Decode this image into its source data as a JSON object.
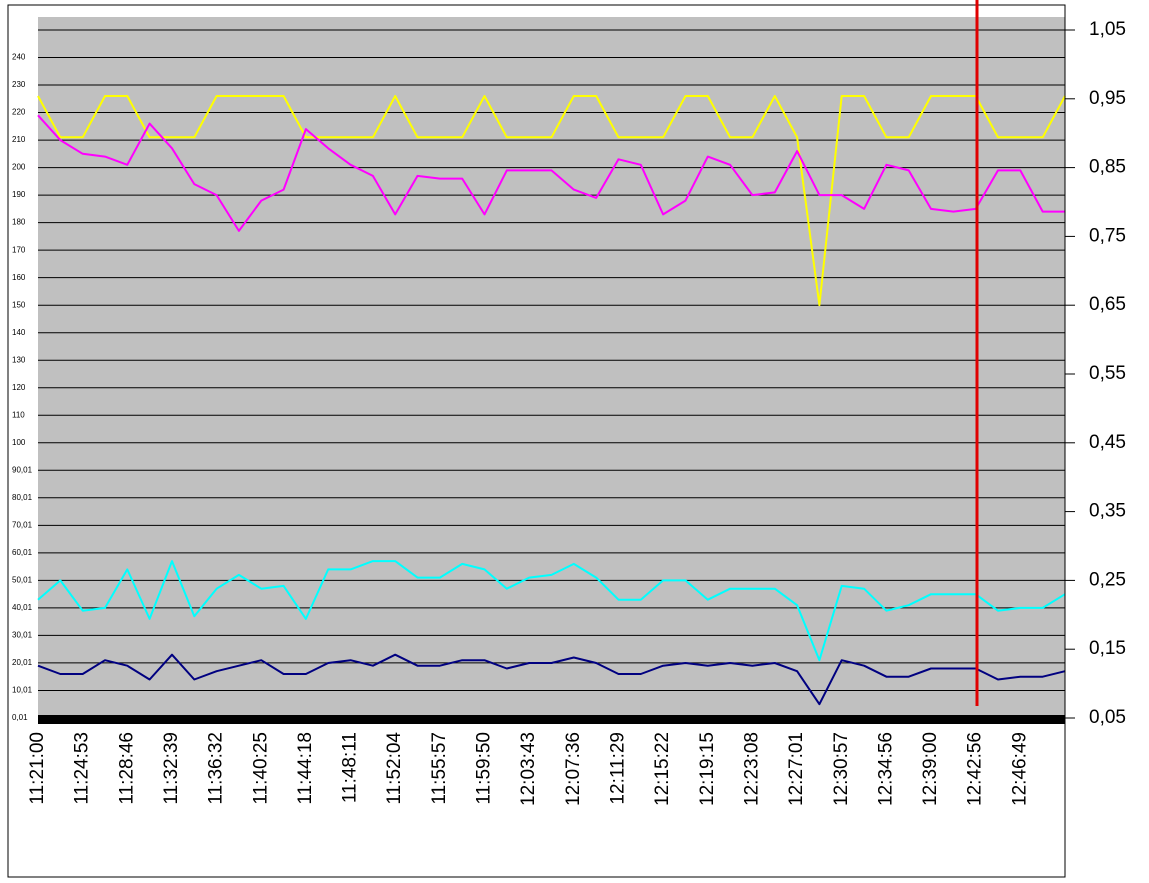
{
  "chart_data": {
    "type": "line",
    "categories": [
      "11:21:00",
      null,
      "11:24:53",
      null,
      "11:28:46",
      null,
      "11:32:39",
      null,
      "11:36:32",
      null,
      "11:40:25",
      null,
      "11:44:18",
      null,
      "11:48:11",
      null,
      "11:52:04",
      null,
      "11:55:57",
      null,
      "11:59:50",
      null,
      "12:03:43",
      null,
      "12:07:36",
      null,
      "12:11:29",
      null,
      "12:15:22",
      null,
      "12:19:15",
      null,
      "12:23:08",
      null,
      "12:27:01",
      null,
      "12:30:57",
      null,
      "12:34:56",
      null,
      "12:39:00",
      null,
      "12:42:56",
      null,
      "12:46:49",
      null,
      null
    ],
    "series": [
      {
        "color": "#ffff00",
        "values": [
          226,
          211,
          211,
          226,
          226,
          211,
          211,
          211,
          226,
          226,
          226,
          226,
          211,
          211,
          211,
          211,
          226,
          211,
          211,
          211,
          226,
          211,
          211,
          211,
          226,
          226,
          211,
          211,
          211,
          226,
          226,
          211,
          211,
          226,
          211,
          150,
          226,
          226,
          211,
          211,
          226,
          226,
          226,
          211,
          211,
          211,
          226
        ]
      },
      {
        "color": "#ff00ff",
        "values": [
          219,
          210,
          205,
          204,
          201,
          216,
          207,
          194,
          190,
          177,
          188,
          192,
          214,
          207,
          201,
          197,
          183,
          197,
          196,
          196,
          183,
          199,
          199,
          199,
          192,
          189,
          203,
          201,
          183,
          188,
          204,
          201,
          190,
          191,
          206,
          190,
          190,
          185,
          201,
          199,
          185,
          184,
          185,
          199,
          199,
          184,
          184
        ]
      },
      {
        "color": "#00ffff",
        "values": [
          43,
          50,
          39,
          40,
          54,
          36,
          57,
          37,
          47,
          52,
          47,
          48,
          36,
          54,
          54,
          57,
          57,
          51,
          51,
          56,
          54,
          47,
          51,
          52,
          56,
          51,
          43,
          43,
          50,
          50,
          43,
          47,
          47,
          47,
          41,
          21,
          48,
          47,
          39,
          41,
          45,
          45,
          45,
          39,
          40,
          40,
          45
        ]
      },
      {
        "color": "#000080",
        "values": [
          19,
          16,
          16,
          21,
          19,
          14,
          23,
          14,
          17,
          19,
          21,
          16,
          16,
          20,
          21,
          19,
          23,
          19,
          19,
          21,
          21,
          18,
          20,
          20,
          22,
          20,
          16,
          16,
          19,
          20,
          19,
          20,
          19,
          20,
          17,
          5,
          21,
          19,
          15,
          15,
          18,
          18,
          18,
          14,
          15,
          15,
          17
        ]
      }
    ],
    "ylim": [
      0,
      250
    ],
    "yticks": [
      {
        "value": 0.01,
        "label": "0,01"
      },
      {
        "value": 10.01,
        "label": "10,01"
      },
      {
        "value": 20.01,
        "label": "20,01"
      },
      {
        "value": 30.01,
        "label": "30,01"
      },
      {
        "value": 40.01,
        "label": "40,01"
      },
      {
        "value": 50.01,
        "label": "50,01"
      },
      {
        "value": 60.01,
        "label": "60,01"
      },
      {
        "value": 70.01,
        "label": "70,01"
      },
      {
        "value": 80.01,
        "label": "80,01"
      },
      {
        "value": 90.01,
        "label": "90,01"
      },
      100,
      110,
      120,
      130,
      140,
      150,
      160,
      170,
      180,
      190,
      200,
      210,
      220,
      230,
      240
    ],
    "y2lim": [
      0.05,
      1.05
    ],
    "y2ticks": [
      {
        "value": 0.05,
        "label": "0,05"
      },
      {
        "value": 0.15,
        "label": "0,15"
      },
      {
        "value": 0.25,
        "label": "0,25"
      },
      {
        "value": 0.35,
        "label": "0,35"
      },
      {
        "value": 0.45,
        "label": "0,45"
      },
      {
        "value": 0.55,
        "label": "0,55"
      },
      {
        "value": 0.65,
        "label": "0,65"
      },
      {
        "value": 0.75,
        "label": "0,75"
      },
      {
        "value": 0.85,
        "label": "0,85"
      },
      {
        "value": 0.95,
        "label": "0,95"
      },
      {
        "value": 1.05,
        "label": "1,05"
      }
    ],
    "grid": true
  }
}
